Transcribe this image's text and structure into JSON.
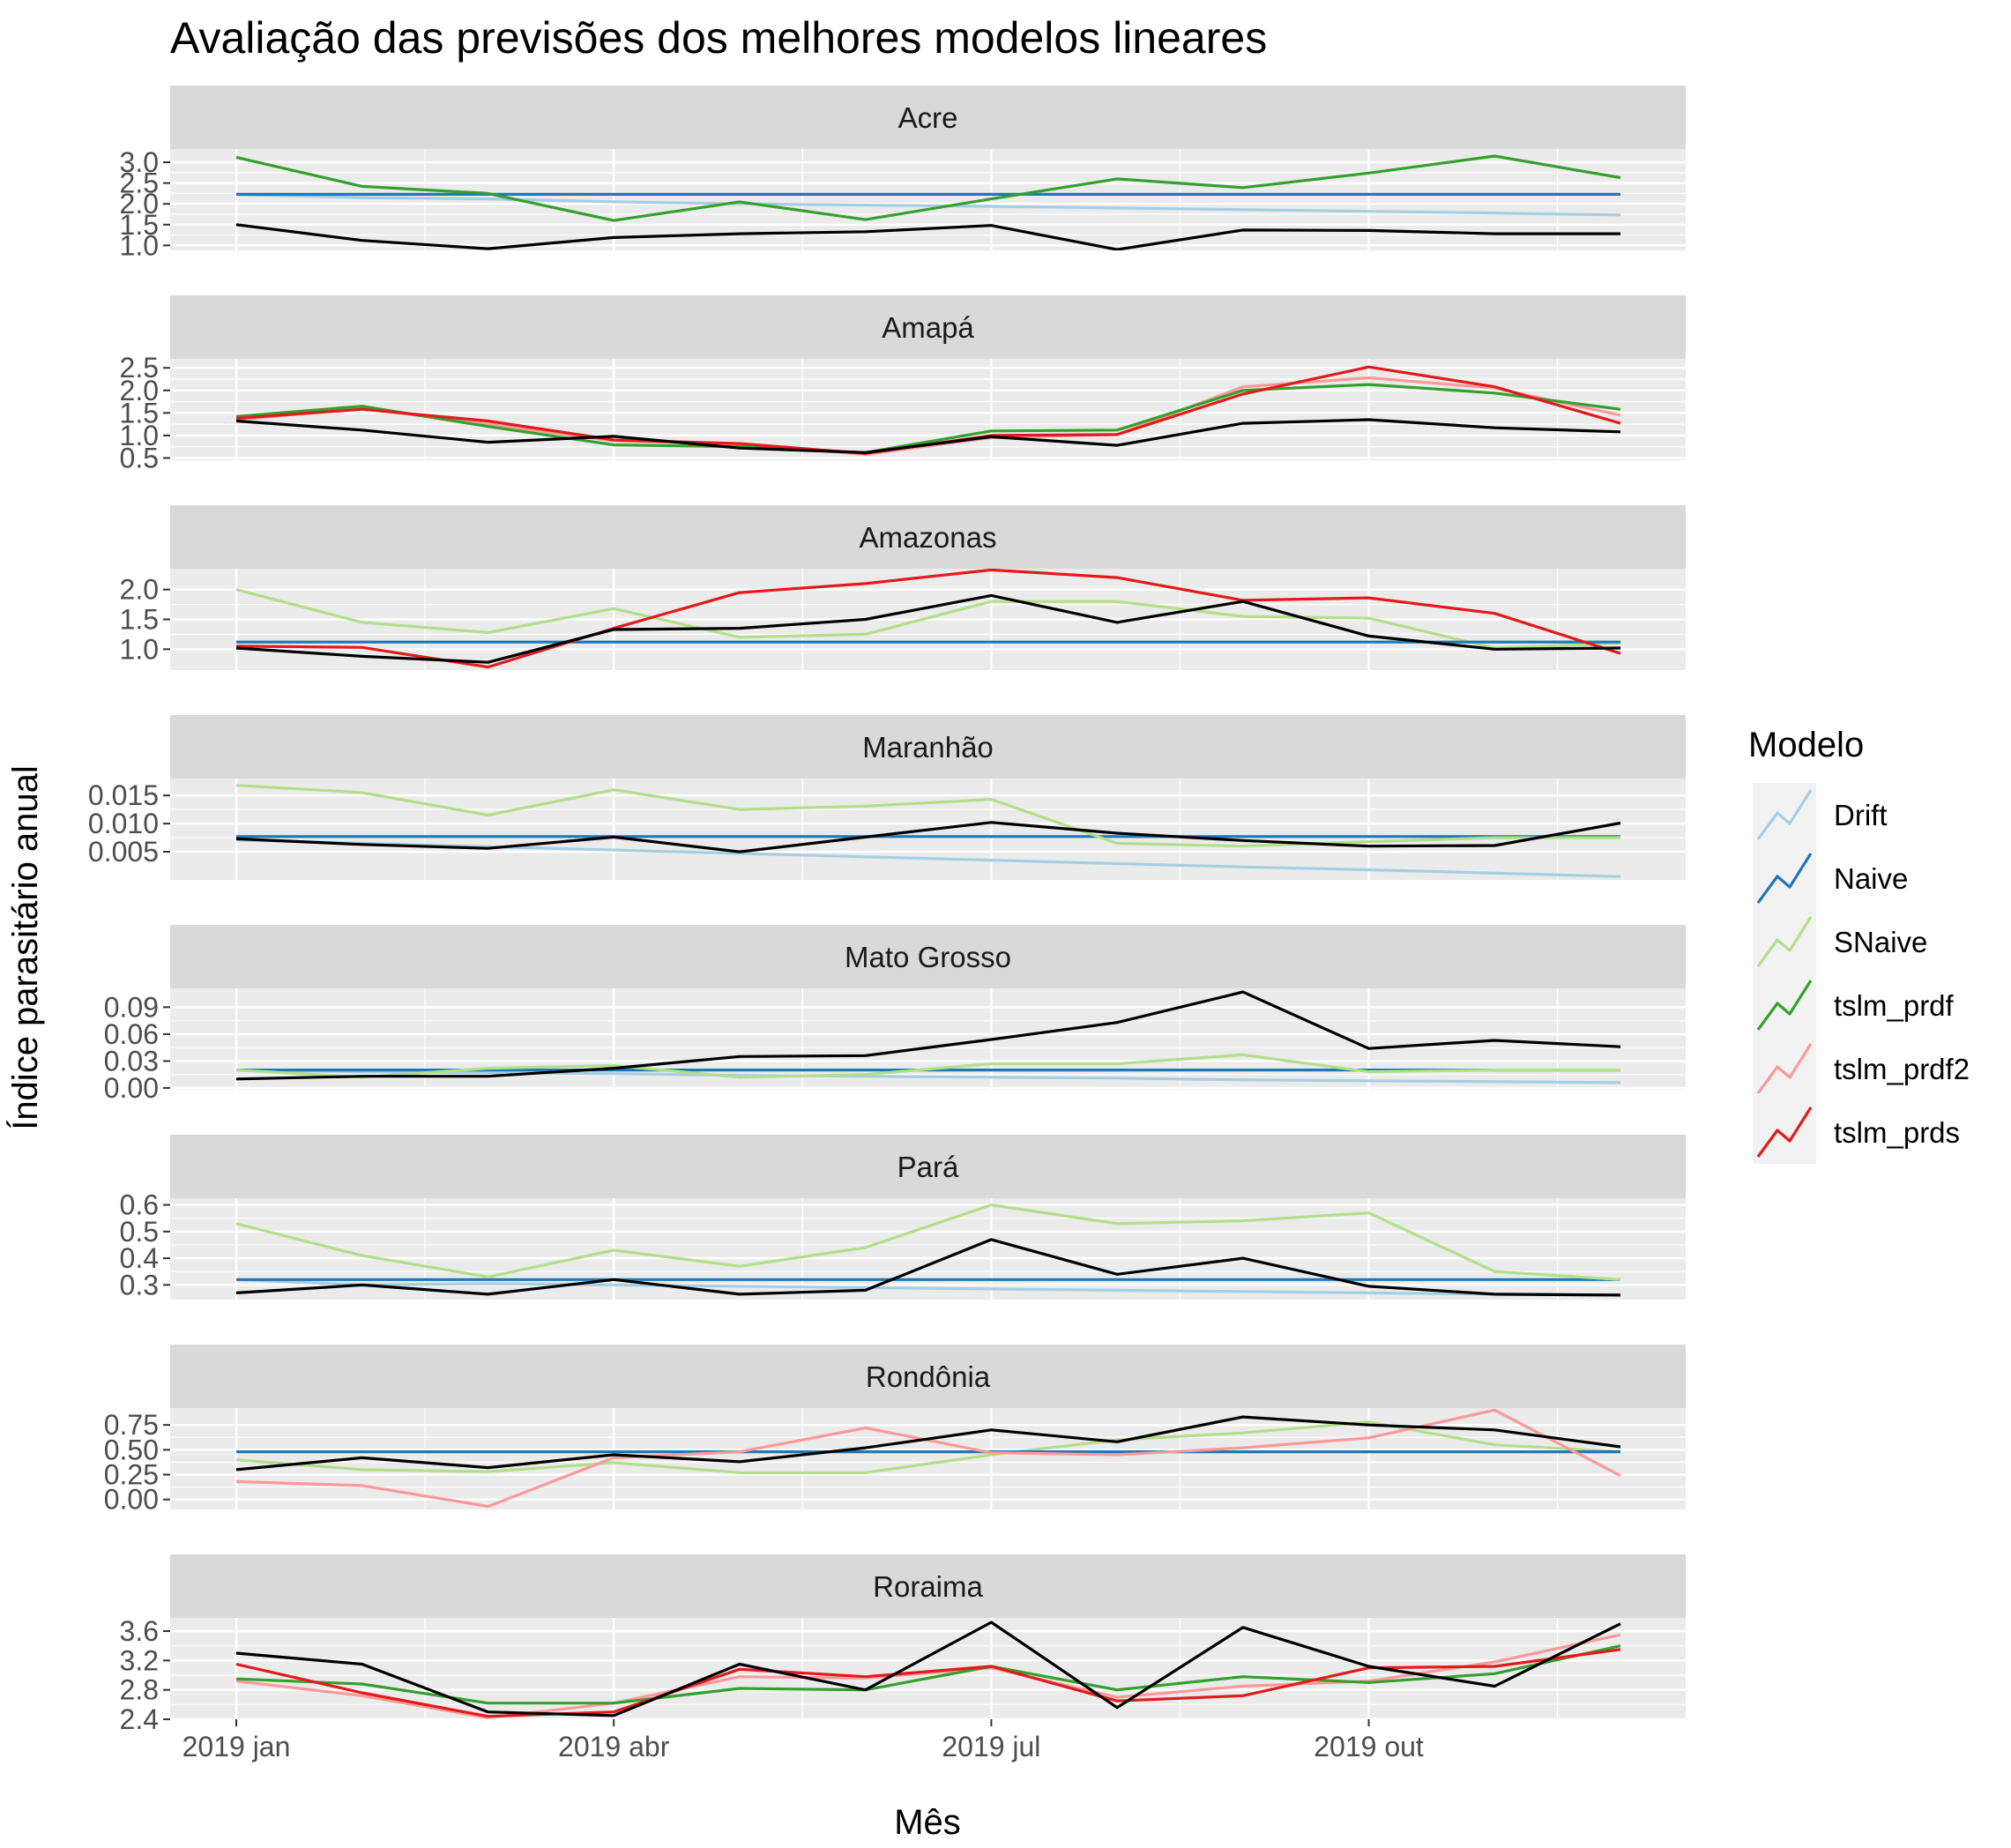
{
  "chart_data": {
    "type": "line",
    "title": "Avaliação das previsões dos melhores modelos lineares",
    "xlabel": "Mês",
    "ylabel": "Índice parasitário anual",
    "x": [
      "2019 jan",
      "2019 fev",
      "2019 mar",
      "2019 abr",
      "2019 mai",
      "2019 jun",
      "2019 jul",
      "2019 ago",
      "2019 set",
      "2019 out",
      "2019 nov",
      "2019 dez"
    ],
    "x_ticks": [
      {
        "index": 0,
        "label": "2019 jan"
      },
      {
        "index": 3,
        "label": "2019 abr"
      },
      {
        "index": 6,
        "label": "2019 jul"
      },
      {
        "index": 9,
        "label": "2019 out"
      }
    ],
    "legend": {
      "title": "Modelo",
      "position": "right",
      "entries": [
        {
          "name": "Drift",
          "color": "#a6cee3"
        },
        {
          "name": "Naive",
          "color": "#1f78b4"
        },
        {
          "name": "SNaive",
          "color": "#b2df8a"
        },
        {
          "name": "tslm_prdf",
          "color": "#33a02c"
        },
        {
          "name": "tslm_prdf2",
          "color": "#fb9a99"
        },
        {
          "name": "tslm_prds",
          "color": "#e31a1c"
        }
      ]
    },
    "observed_color": "#000000",
    "grid": true,
    "panels": [
      {
        "name": "Acre",
        "ylim": [
          0.88,
          3.32
        ],
        "y_ticks": [
          {
            "v": 1.0,
            "label": "1.0"
          },
          {
            "v": 1.5,
            "label": "1.5"
          },
          {
            "v": 2.0,
            "label": "2.0"
          },
          {
            "v": 2.5,
            "label": "2.5"
          },
          {
            "v": 3.0,
            "label": "3.0"
          }
        ],
        "series": [
          {
            "model": "Drift",
            "values": [
              2.22,
              2.15,
              2.12,
              2.05,
              2.0,
              1.97,
              1.94,
              1.9,
              1.86,
              1.82,
              1.78,
              1.73
            ]
          },
          {
            "model": "Naive",
            "values": [
              2.23,
              2.23,
              2.23,
              2.23,
              2.23,
              2.23,
              2.23,
              2.23,
              2.23,
              2.23,
              2.23,
              2.23
            ]
          },
          {
            "model": "tslm_prdf",
            "values": [
              3.12,
              2.42,
              2.25,
              1.6,
              2.05,
              1.62,
              2.12,
              2.6,
              2.39,
              2.74,
              3.15,
              2.63
            ]
          },
          {
            "observed": true,
            "values": [
              1.5,
              1.12,
              0.92,
              1.19,
              1.28,
              1.33,
              1.48,
              0.9,
              1.37,
              1.36,
              1.28,
              1.28
            ]
          }
        ]
      },
      {
        "name": "Amapá",
        "ylim": [
          0.45,
          2.7
        ],
        "y_ticks": [
          {
            "v": 0.5,
            "label": "0.5"
          },
          {
            "v": 1.0,
            "label": "1.0"
          },
          {
            "v": 1.5,
            "label": "1.5"
          },
          {
            "v": 2.0,
            "label": "2.0"
          },
          {
            "v": 2.5,
            "label": "2.5"
          }
        ],
        "series": [
          {
            "model": "tslm_prdf2",
            "values": [
              1.35,
              1.6,
              1.25,
              0.88,
              0.8,
              0.58,
              0.95,
              1.02,
              2.08,
              2.28,
              2.05,
              1.45
            ]
          },
          {
            "model": "tslm_prdf",
            "values": [
              1.42,
              1.65,
              1.2,
              0.79,
              0.75,
              0.62,
              1.1,
              1.12,
              2.0,
              2.13,
              1.94,
              1.58
            ]
          },
          {
            "model": "tslm_prds",
            "values": [
              1.38,
              1.58,
              1.32,
              0.9,
              0.82,
              0.6,
              1.0,
              1.02,
              1.92,
              2.52,
              2.08,
              1.27
            ]
          },
          {
            "observed": true,
            "values": [
              1.32,
              1.12,
              0.85,
              0.98,
              0.72,
              0.62,
              0.97,
              0.78,
              1.27,
              1.35,
              1.17,
              1.08
            ]
          }
        ]
      },
      {
        "name": "Amazonas",
        "ylim": [
          0.65,
          2.35
        ],
        "y_ticks": [
          {
            "v": 1.0,
            "label": "1.0"
          },
          {
            "v": 1.5,
            "label": "1.5"
          },
          {
            "v": 2.0,
            "label": "2.0"
          }
        ],
        "series": [
          {
            "model": "Drift",
            "values": [
              1.12,
              1.12,
              1.12,
              1.12,
              1.12,
              1.12,
              1.12,
              1.12,
              1.12,
              1.12,
              1.12,
              1.12
            ]
          },
          {
            "model": "SNaive",
            "values": [
              2.0,
              1.45,
              1.28,
              1.68,
              1.2,
              1.25,
              1.8,
              1.8,
              1.55,
              1.52,
              1.02,
              1.1
            ]
          },
          {
            "model": "Naive",
            "values": [
              1.12,
              1.12,
              1.12,
              1.12,
              1.12,
              1.12,
              1.12,
              1.12,
              1.12,
              1.12,
              1.12,
              1.12
            ]
          },
          {
            "model": "tslm_prds",
            "values": [
              1.05,
              1.03,
              0.7,
              1.35,
              1.95,
              2.1,
              2.33,
              2.2,
              1.82,
              1.86,
              1.6,
              0.93
            ]
          },
          {
            "observed": true,
            "values": [
              1.02,
              0.88,
              0.78,
              1.33,
              1.35,
              1.5,
              1.9,
              1.45,
              1.8,
              1.22,
              1.0,
              1.02
            ]
          }
        ]
      },
      {
        "name": "Maranhão",
        "ylim": [
          0.0,
          0.018
        ],
        "y_ticks": [
          {
            "v": 0.005,
            "label": "0.005"
          },
          {
            "v": 0.01,
            "label": "0.010"
          },
          {
            "v": 0.015,
            "label": "0.015"
          }
        ],
        "series": [
          {
            "model": "Drift",
            "values": [
              0.0071,
              0.0065,
              0.0059,
              0.0053,
              0.0047,
              0.0041,
              0.0035,
              0.0029,
              0.0023,
              0.0018,
              0.0012,
              0.0006
            ]
          },
          {
            "model": "Naive",
            "values": [
              0.0077,
              0.0077,
              0.0077,
              0.0077,
              0.0077,
              0.0077,
              0.0077,
              0.0077,
              0.0077,
              0.0077,
              0.0077,
              0.0077
            ]
          },
          {
            "model": "SNaive",
            "values": [
              0.0168,
              0.0155,
              0.0115,
              0.016,
              0.0125,
              0.0131,
              0.0143,
              0.0065,
              0.006,
              0.0068,
              0.0075,
              0.0075
            ]
          },
          {
            "observed": true,
            "values": [
              0.0073,
              0.0063,
              0.0056,
              0.0076,
              0.005,
              0.0076,
              0.0102,
              0.0083,
              0.007,
              0.006,
              0.0061,
              0.0101
            ]
          }
        ]
      },
      {
        "name": "Mato Grosso",
        "ylim": [
          -0.002,
          0.111
        ],
        "y_ticks": [
          {
            "v": 0.0,
            "label": "0.00"
          },
          {
            "v": 0.03,
            "label": "0.03"
          },
          {
            "v": 0.06,
            "label": "0.06"
          },
          {
            "v": 0.09,
            "label": "0.09"
          }
        ],
        "series": [
          {
            "model": "Drift",
            "values": [
              0.02,
              0.018,
              0.017,
              0.016,
              0.014,
              0.013,
              0.012,
              0.011,
              0.009,
              0.008,
              0.007,
              0.006
            ]
          },
          {
            "model": "Naive",
            "values": [
              0.02,
              0.02,
              0.02,
              0.02,
              0.02,
              0.02,
              0.02,
              0.02,
              0.02,
              0.02,
              0.02,
              0.02
            ]
          },
          {
            "model": "SNaive",
            "values": [
              0.02,
              0.012,
              0.022,
              0.025,
              0.012,
              0.015,
              0.027,
              0.027,
              0.037,
              0.018,
              0.02,
              0.02
            ]
          },
          {
            "observed": true,
            "values": [
              0.01,
              0.013,
              0.013,
              0.022,
              0.035,
              0.036,
              0.054,
              0.073,
              0.107,
              0.044,
              0.053,
              0.046
            ]
          }
        ]
      },
      {
        "name": "Pará",
        "ylim": [
          0.245,
          0.625
        ],
        "y_ticks": [
          {
            "v": 0.3,
            "label": "0.3"
          },
          {
            "v": 0.4,
            "label": "0.4"
          },
          {
            "v": 0.5,
            "label": "0.5"
          },
          {
            "v": 0.6,
            "label": "0.6"
          }
        ],
        "series": [
          {
            "model": "Drift",
            "values": [
              0.32,
              0.3,
              0.305,
              0.3,
              0.295,
              0.29,
              0.285,
              0.28,
              0.275,
              0.27,
              0.265,
              0.262
            ]
          },
          {
            "model": "Naive",
            "values": [
              0.32,
              0.32,
              0.32,
              0.32,
              0.32,
              0.32,
              0.32,
              0.32,
              0.32,
              0.32,
              0.32,
              0.32
            ]
          },
          {
            "model": "SNaive",
            "values": [
              0.53,
              0.41,
              0.33,
              0.43,
              0.37,
              0.44,
              0.6,
              0.53,
              0.54,
              0.57,
              0.35,
              0.32
            ]
          },
          {
            "observed": true,
            "values": [
              0.27,
              0.3,
              0.265,
              0.32,
              0.265,
              0.28,
              0.47,
              0.34,
              0.4,
              0.295,
              0.265,
              0.262
            ]
          }
        ]
      },
      {
        "name": "Rondônia",
        "ylim": [
          -0.1,
          0.92
        ],
        "y_ticks": [
          {
            "v": 0.0,
            "label": "0.00"
          },
          {
            "v": 0.25,
            "label": "0.25"
          },
          {
            "v": 0.5,
            "label": "0.50"
          },
          {
            "v": 0.75,
            "label": "0.75"
          }
        ],
        "series": [
          {
            "model": "SNaive",
            "values": [
              0.4,
              0.3,
              0.28,
              0.37,
              0.27,
              0.27,
              0.45,
              0.6,
              0.67,
              0.78,
              0.55,
              0.48
            ]
          },
          {
            "model": "Naive",
            "values": [
              0.48,
              0.48,
              0.48,
              0.48,
              0.48,
              0.48,
              0.48,
              0.48,
              0.48,
              0.48,
              0.48,
              0.48
            ]
          },
          {
            "model": "tslm_prdf2",
            "values": [
              0.18,
              0.14,
              -0.07,
              0.42,
              0.48,
              0.72,
              0.47,
              0.45,
              0.52,
              0.62,
              0.9,
              0.24
            ]
          },
          {
            "observed": true,
            "values": [
              0.3,
              0.42,
              0.32,
              0.45,
              0.38,
              0.52,
              0.7,
              0.58,
              0.83,
              0.75,
              0.7,
              0.53
            ]
          }
        ]
      },
      {
        "name": "Roraima",
        "ylim": [
          2.4,
          3.78
        ],
        "y_ticks": [
          {
            "v": 2.4,
            "label": "2.4"
          },
          {
            "v": 2.8,
            "label": "2.8"
          },
          {
            "v": 3.2,
            "label": "3.2"
          },
          {
            "v": 3.6,
            "label": "3.6"
          }
        ],
        "series": [
          {
            "model": "tslm_prdf2",
            "values": [
              2.92,
              2.72,
              2.42,
              2.62,
              2.98,
              2.96,
              3.1,
              2.7,
              2.85,
              2.92,
              3.18,
              3.55
            ]
          },
          {
            "model": "tslm_prdf",
            "values": [
              2.95,
              2.88,
              2.62,
              2.62,
              2.82,
              2.8,
              3.12,
              2.8,
              2.98,
              2.9,
              3.02,
              3.4
            ]
          },
          {
            "model": "tslm_prds",
            "values": [
              3.15,
              2.76,
              2.44,
              2.5,
              3.08,
              2.98,
              3.12,
              2.65,
              2.72,
              3.1,
              3.12,
              3.35
            ]
          },
          {
            "observed": true,
            "values": [
              3.3,
              3.15,
              2.5,
              2.45,
              3.15,
              2.8,
              3.72,
              2.56,
              3.65,
              3.12,
              2.85,
              3.7
            ]
          }
        ]
      }
    ]
  }
}
